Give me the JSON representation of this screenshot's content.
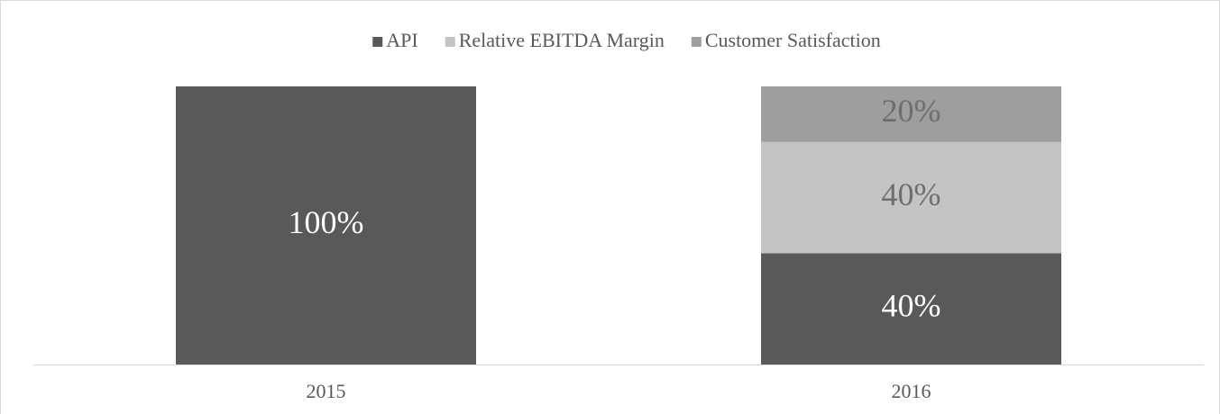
{
  "chart_data": {
    "type": "stacked_bar",
    "categories": [
      "2015",
      "2016"
    ],
    "series": [
      {
        "name": "API",
        "color": "#58595b",
        "label_color": "#ffffff",
        "values": [
          100,
          40
        ],
        "value_labels": [
          "100%",
          "40%"
        ]
      },
      {
        "name": "Relative EBITDA Margin",
        "color": "#c3c4c6",
        "label_color": "#6d6e70",
        "values": [
          null,
          40
        ],
        "value_labels": [
          null,
          "40%"
        ]
      },
      {
        "name": "Customer Satisfaction",
        "color": "#9d9ea0",
        "label_color": "#6d6e70",
        "values": [
          null,
          20
        ],
        "value_labels": [
          null,
          "20%"
        ]
      }
    ],
    "ylim": [
      0,
      100
    ],
    "legend": "top"
  }
}
